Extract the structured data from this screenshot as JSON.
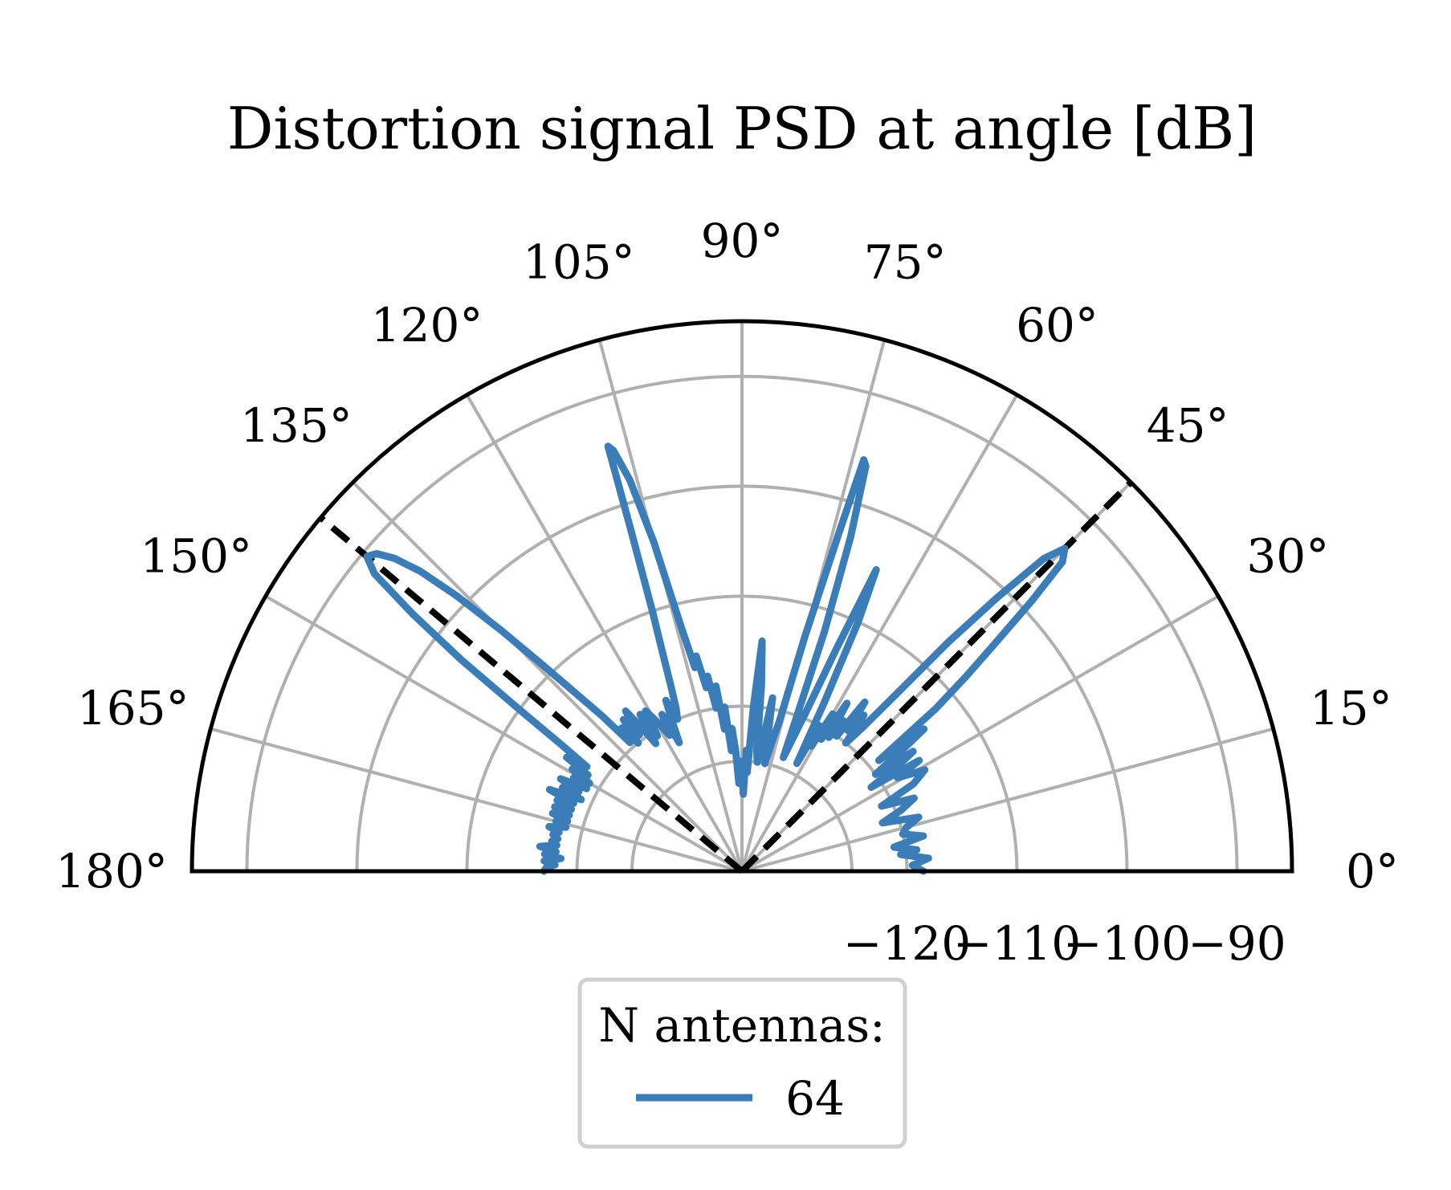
{
  "chart_data": {
    "type": "polar-line",
    "title": "Distortion signal PSD at angle [dB]",
    "theta_range_deg": [
      0,
      180
    ],
    "r_range_db": [
      -135,
      -85
    ],
    "theta_ticks": [
      "0°",
      "15°",
      "30°",
      "45°",
      "60°",
      "75°",
      "90°",
      "105°",
      "120°",
      "135°",
      "150°",
      "165°",
      "180°"
    ],
    "r_ticks": [
      {
        "value": -120,
        "label": "−120"
      },
      {
        "value": -110,
        "label": "−110"
      },
      {
        "value": -100,
        "label": "−100"
      },
      {
        "value": -90,
        "label": "−90"
      }
    ],
    "grid": true,
    "reference_directions_deg": [
      45,
      140
    ],
    "legend": {
      "title": "N antennas:",
      "placement": "bottom-center",
      "entries": [
        {
          "label": "64",
          "color": "#3a7db8"
        }
      ]
    },
    "series": [
      {
        "name": "64",
        "color": "#3a7db8",
        "points": [
          [
            0,
            -118.5
          ],
          [
            2,
            -119.5
          ],
          [
            4,
            -118
          ],
          [
            6,
            -120.5
          ],
          [
            7,
            -119
          ],
          [
            9,
            -121
          ],
          [
            11,
            -118.2
          ],
          [
            13,
            -120
          ],
          [
            15,
            -119.5
          ],
          [
            17,
            -118.2
          ],
          [
            19,
            -121.5
          ],
          [
            21,
            -119.5
          ],
          [
            23,
            -118
          ],
          [
            25,
            -121
          ],
          [
            27,
            -117.5
          ],
          [
            29,
            -116
          ],
          [
            31,
            -118.5
          ],
          [
            32,
            -116
          ],
          [
            33,
            -121
          ],
          [
            34,
            -118
          ],
          [
            35,
            -116
          ],
          [
            36,
            -120
          ],
          [
            37,
            -117
          ],
          [
            38,
            -114
          ],
          [
            39,
            -119
          ],
          [
            40,
            -112
          ],
          [
            41,
            -108
          ],
          [
            42,
            -104
          ],
          [
            43,
            -99
          ],
          [
            44,
            -94.5
          ],
          [
            45,
            -93.5
          ],
          [
            46,
            -95.5
          ],
          [
            47,
            -101
          ],
          [
            48,
            -107
          ],
          [
            49,
            -114
          ],
          [
            50,
            -118
          ],
          [
            51,
            -120
          ],
          [
            52,
            -117
          ],
          [
            53,
            -119
          ],
          [
            54,
            -116
          ],
          [
            55,
            -120
          ],
          [
            56,
            -118.5
          ],
          [
            57,
            -120.5
          ],
          [
            58,
            -117
          ],
          [
            59,
            -121
          ],
          [
            60,
            -118.5
          ],
          [
            61,
            -122
          ],
          [
            62,
            -120
          ],
          [
            63,
            -124
          ],
          [
            64,
            -118
          ],
          [
            65,
            -110
          ],
          [
            66,
            -105
          ],
          [
            67,
            -113
          ],
          [
            68,
            -119
          ],
          [
            69,
            -122
          ],
          [
            70,
            -124
          ],
          [
            71,
            -112
          ],
          [
            72,
            -103
          ],
          [
            73,
            -96.5
          ],
          [
            73.5,
            -96
          ],
          [
            74,
            -103
          ],
          [
            75,
            -113
          ],
          [
            76,
            -121
          ],
          [
            77,
            -123
          ],
          [
            78,
            -125
          ],
          [
            79,
            -123
          ],
          [
            80,
            -119
          ],
          [
            81,
            -123
          ],
          [
            82,
            -125
          ],
          [
            83,
            -124
          ],
          [
            84,
            -118
          ],
          [
            85,
            -114
          ],
          [
            86,
            -120
          ],
          [
            87,
            -126
          ],
          [
            88,
            -124
          ],
          [
            89,
            -128
          ],
          [
            90,
            -126
          ],
          [
            91,
            -125
          ],
          [
            92,
            -127
          ],
          [
            93,
            -124
          ],
          [
            94,
            -122
          ],
          [
            95,
            -124
          ],
          [
            96,
            -120
          ],
          [
            97,
            -122
          ],
          [
            98,
            -118
          ],
          [
            99,
            -120
          ],
          [
            100,
            -117
          ],
          [
            101,
            -118
          ],
          [
            102,
            -115
          ],
          [
            103,
            -116
          ],
          [
            104,
            -112
          ],
          [
            105,
            -104
          ],
          [
            106,
            -98
          ],
          [
            107,
            -95
          ],
          [
            107.5,
            -94.5
          ],
          [
            108,
            -102
          ],
          [
            109,
            -110
          ],
          [
            110,
            -114
          ],
          [
            111,
            -117
          ],
          [
            112,
            -119
          ],
          [
            113,
            -120
          ],
          [
            114,
            -118
          ],
          [
            115,
            -120
          ],
          [
            116,
            -122
          ],
          [
            117,
            -119
          ],
          [
            118,
            -121
          ],
          [
            119,
            -120
          ],
          [
            120,
            -119
          ],
          [
            121,
            -118
          ],
          [
            122,
            -120.5
          ],
          [
            123,
            -118
          ],
          [
            124,
            -121
          ],
          [
            125,
            -119
          ],
          [
            126,
            -117
          ],
          [
            127,
            -119.5
          ],
          [
            128,
            -117.5
          ],
          [
            129,
            -120
          ],
          [
            130,
            -118
          ],
          [
            131,
            -119.5
          ],
          [
            132,
            -116
          ],
          [
            133,
            -113
          ],
          [
            134,
            -109
          ],
          [
            135,
            -104
          ],
          [
            136,
            -99
          ],
          [
            137,
            -95
          ],
          [
            138,
            -92.5
          ],
          [
            139,
            -91
          ],
          [
            140,
            -90.5
          ],
          [
            141,
            -92
          ],
          [
            142,
            -97
          ],
          [
            143,
            -103
          ],
          [
            144,
            -110
          ],
          [
            145,
            -115
          ],
          [
            146,
            -118
          ],
          [
            147,
            -116
          ],
          [
            148,
            -118.5
          ],
          [
            149,
            -117
          ],
          [
            150,
            -119
          ],
          [
            151,
            -117.5
          ],
          [
            152,
            -119
          ],
          [
            153,
            -116.5
          ],
          [
            154,
            -118.5
          ],
          [
            155,
            -117
          ],
          [
            156,
            -119
          ],
          [
            157,
            -116
          ],
          [
            158,
            -118.5
          ],
          [
            159,
            -117
          ],
          [
            160,
            -118.5
          ],
          [
            161,
            -117
          ],
          [
            162,
            -118.5
          ],
          [
            163,
            -117
          ],
          [
            164,
            -118.5
          ],
          [
            165,
            -117.5
          ],
          [
            166,
            -118.5
          ],
          [
            167,
            -117
          ],
          [
            168,
            -118
          ],
          [
            169,
            -117.5
          ],
          [
            170,
            -118
          ],
          [
            171,
            -117.5
          ],
          [
            172,
            -118
          ],
          [
            173,
            -116.5
          ],
          [
            174,
            -118
          ],
          [
            175,
            -117
          ],
          [
            176,
            -118.5
          ],
          [
            177,
            -117
          ],
          [
            178,
            -118
          ],
          [
            179,
            -117.2
          ],
          [
            180,
            -117
          ]
        ]
      }
    ]
  }
}
